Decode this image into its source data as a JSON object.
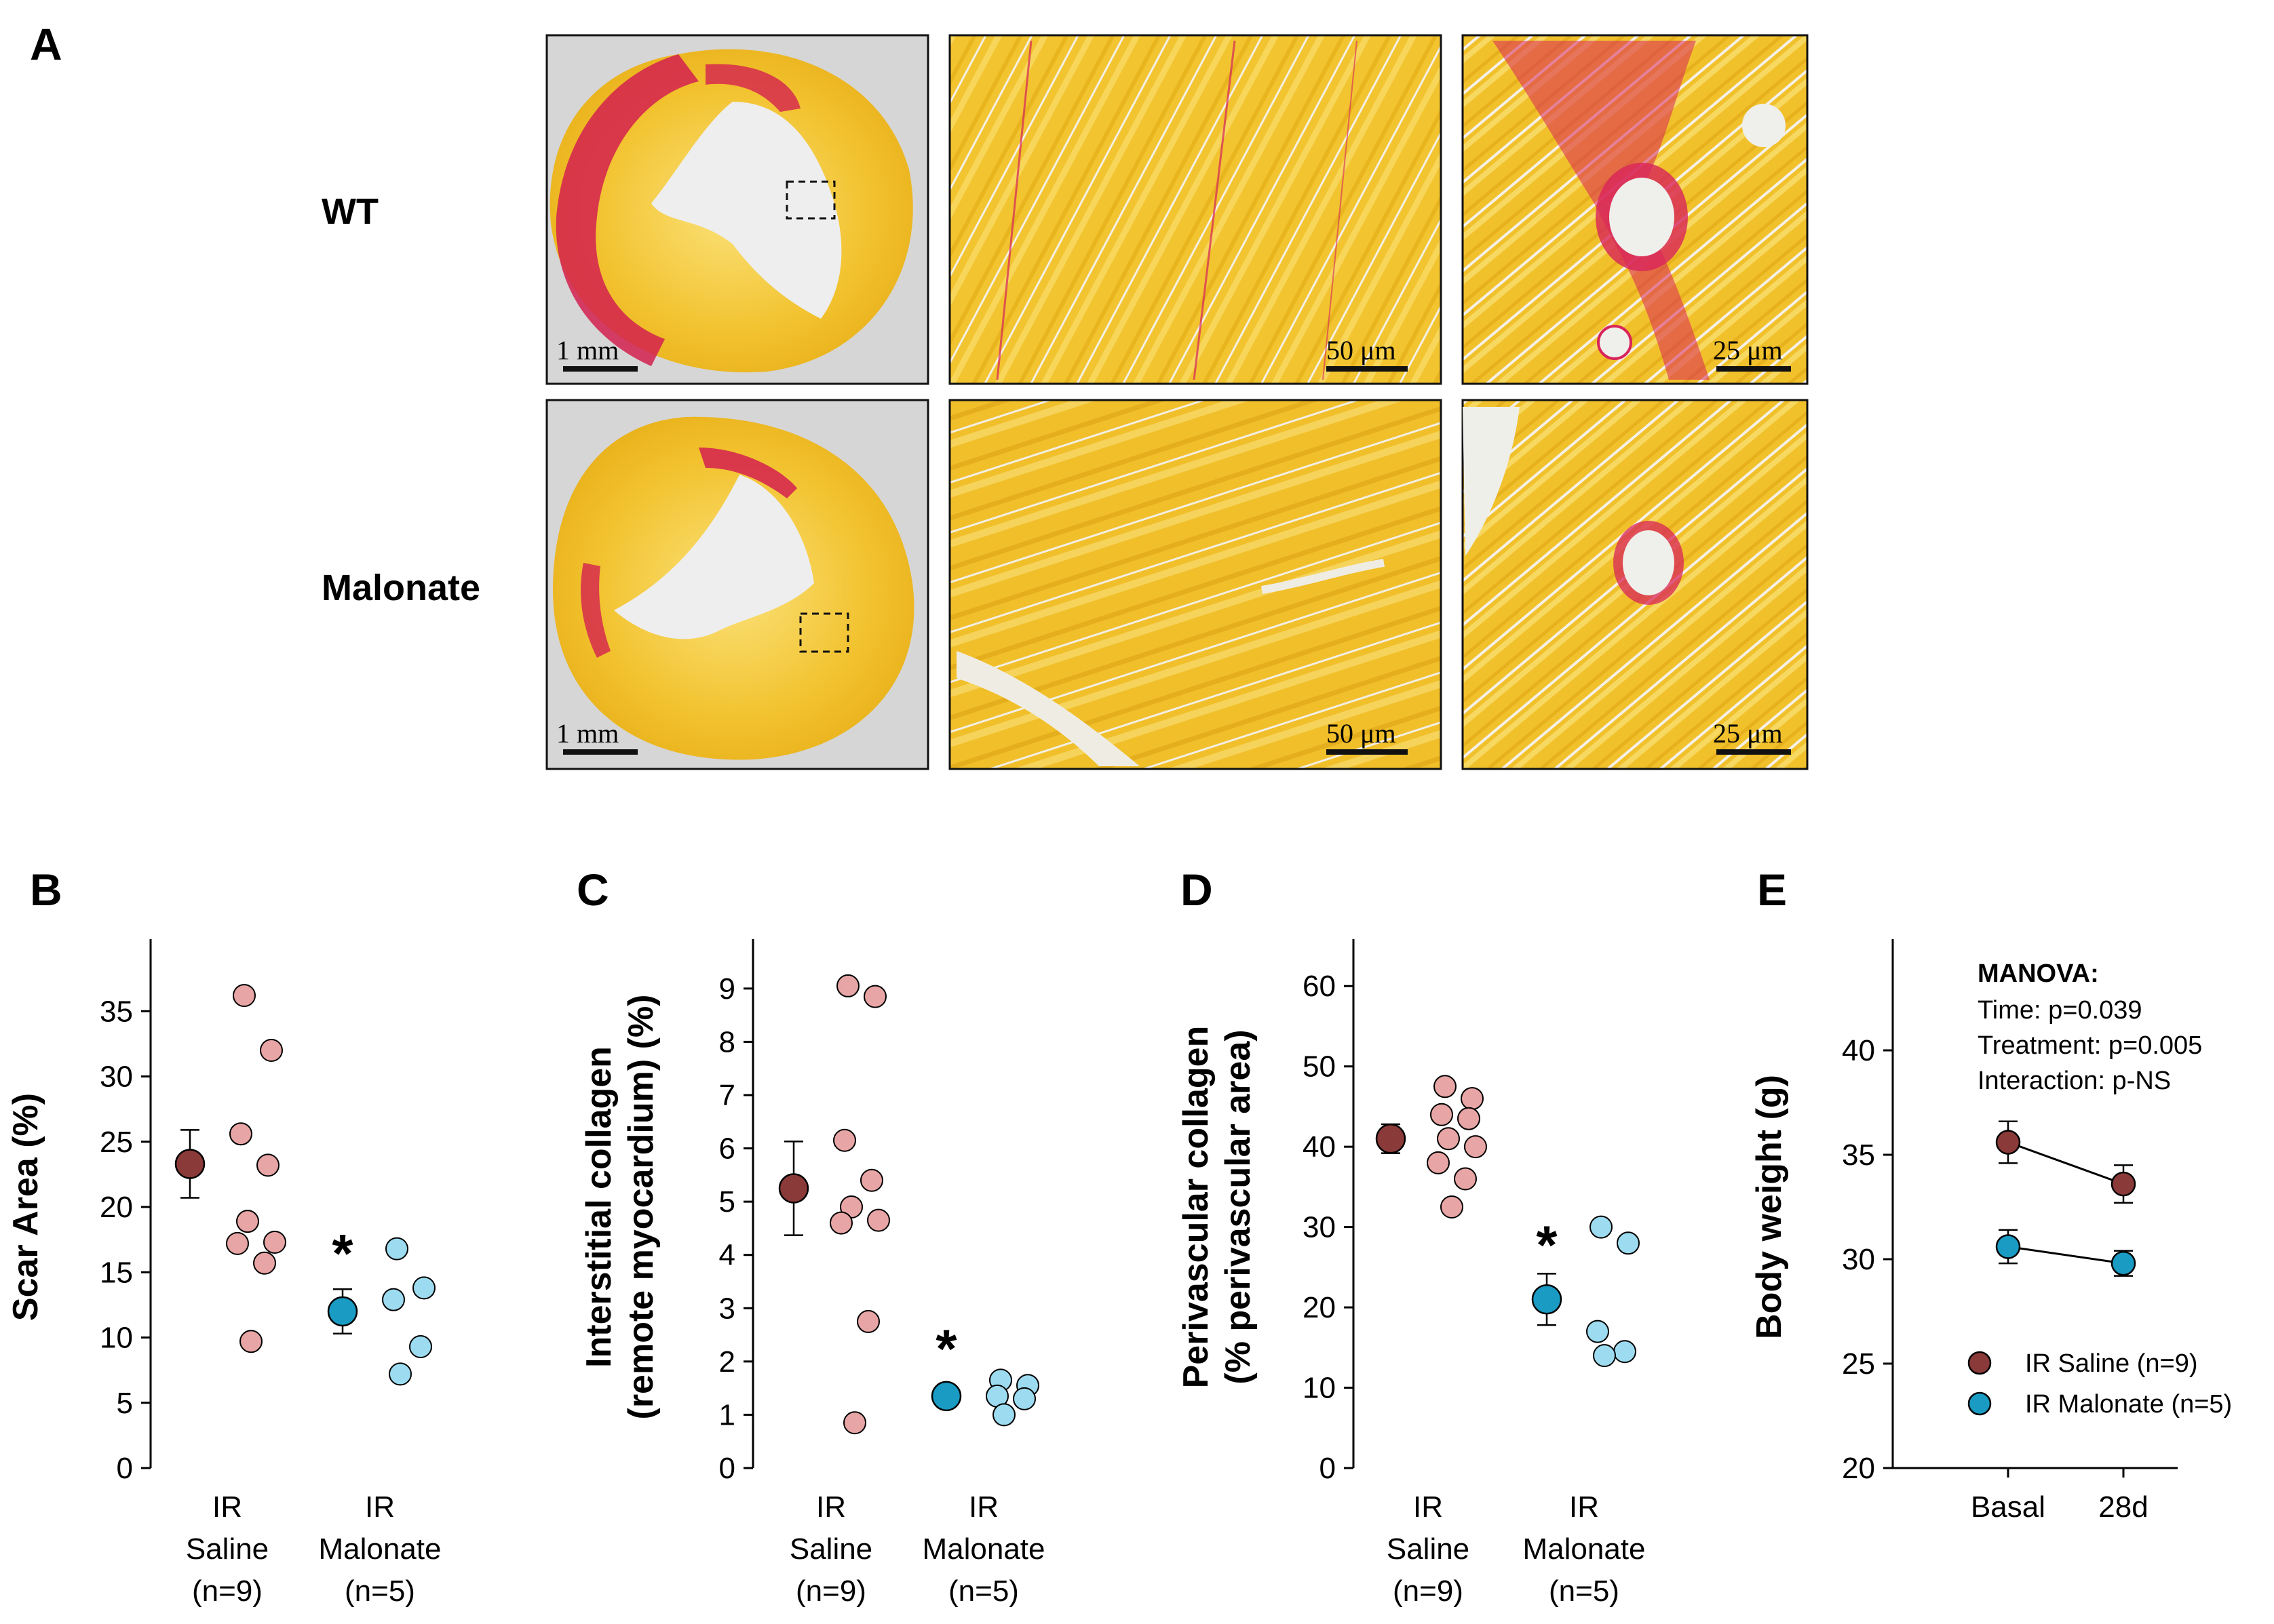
{
  "panel_letters": {
    "A": "A",
    "B": "B",
    "C": "C",
    "D": "D",
    "E": "E"
  },
  "histology": {
    "rows": [
      "WT",
      "Malonate"
    ],
    "scale_bars": [
      "1 mm",
      "50 μm",
      "25 μm"
    ],
    "colors": {
      "tissue": "#f2c22e",
      "collagen": "#e0245e",
      "background": "#d8d8d8"
    }
  },
  "colors": {
    "saline_mean": "#8b3a3a",
    "saline_point": "#e8a5a5",
    "malonate_mean": "#1a9bc4",
    "malonate_point": "#9ddcf0"
  },
  "chart_data": [
    {
      "panel": "B",
      "type": "scatter",
      "ylabel": "Scar Area (%)",
      "ylim": [
        0,
        40
      ],
      "yticks": [
        0,
        5,
        10,
        15,
        20,
        25,
        30,
        35
      ],
      "categories": [
        {
          "lines": [
            "IR",
            "Saline",
            "(n=9)"
          ]
        },
        {
          "lines": [
            "IR",
            "Malonate",
            "(n=5)"
          ]
        }
      ],
      "series": [
        {
          "name": "IR Saline",
          "mean": 23.3,
          "err": 2.6,
          "points": [
            36.2,
            32.0,
            25.6,
            23.2,
            18.9,
            17.3,
            17.2,
            15.7,
            9.7
          ]
        },
        {
          "name": "IR Malonate",
          "mean": 12.0,
          "err": 1.7,
          "points": [
            16.8,
            13.8,
            12.9,
            9.3,
            7.2
          ]
        }
      ],
      "significance": {
        "category_index": 1,
        "value": 17.5,
        "label": "*"
      }
    },
    {
      "panel": "C",
      "type": "scatter",
      "ylabel": [
        "Interstitial collagen",
        "(remote myocardium) (%)"
      ],
      "ylim": [
        0,
        9.8
      ],
      "yticks": [
        0,
        1,
        2,
        3,
        4,
        5,
        6,
        7,
        8,
        9
      ],
      "categories": [
        {
          "lines": [
            "IR",
            "Saline",
            "(n=9)"
          ]
        },
        {
          "lines": [
            "IR",
            "Malonate",
            "(n=5)"
          ]
        }
      ],
      "series": [
        {
          "name": "IR Saline",
          "mean": 5.25,
          "err": 0.88,
          "points": [
            9.05,
            8.85,
            6.15,
            5.4,
            4.9,
            4.65,
            4.6,
            2.75,
            0.85
          ]
        },
        {
          "name": "IR Malonate",
          "mean": 1.35,
          "err": 0.15,
          "points": [
            1.65,
            1.55,
            1.35,
            1.3,
            1.0
          ]
        }
      ],
      "significance": {
        "category_index": 1,
        "value": 2.5,
        "label": "*"
      }
    },
    {
      "panel": "D",
      "type": "scatter",
      "ylabel": [
        "Perivascular collagen",
        "(% perivascular area)"
      ],
      "ylim": [
        0,
        65
      ],
      "yticks": [
        0,
        10,
        20,
        30,
        40,
        50,
        60
      ],
      "categories": [
        {
          "lines": [
            "IR",
            "Saline",
            "(n=9)"
          ]
        },
        {
          "lines": [
            "IR",
            "Malonate",
            "(n=5)"
          ]
        }
      ],
      "series": [
        {
          "name": "IR Saline",
          "mean": 41.0,
          "err": 1.8,
          "points": [
            47.5,
            46.0,
            44.0,
            43.5,
            41.0,
            40.0,
            38.0,
            36.0,
            32.5
          ]
        },
        {
          "name": "IR Malonate",
          "mean": 21.0,
          "err": 3.2,
          "points": [
            30.0,
            28.0,
            17.0,
            14.5,
            14.0
          ]
        }
      ],
      "significance": {
        "category_index": 1,
        "value": 29.5,
        "label": "*"
      }
    },
    {
      "panel": "E",
      "type": "line",
      "ylabel": "Body weight (g)",
      "ylim": [
        20,
        45
      ],
      "yticks": [
        20,
        25,
        30,
        35,
        40
      ],
      "x": [
        "Basal",
        "28d"
      ],
      "series": [
        {
          "name": "IR Saline (n=9)",
          "values": [
            35.6,
            33.6
          ],
          "err": [
            1.0,
            0.9
          ]
        },
        {
          "name": "IR Malonate (n=5)",
          "values": [
            30.6,
            29.8
          ],
          "err": [
            0.8,
            0.6
          ]
        }
      ],
      "annotation": {
        "title": "MANOVA:",
        "lines": [
          "Time: p=0.039",
          "Treatment: p=0.005",
          "Interaction: p-NS"
        ]
      },
      "legend_position": "bottom-left"
    }
  ]
}
